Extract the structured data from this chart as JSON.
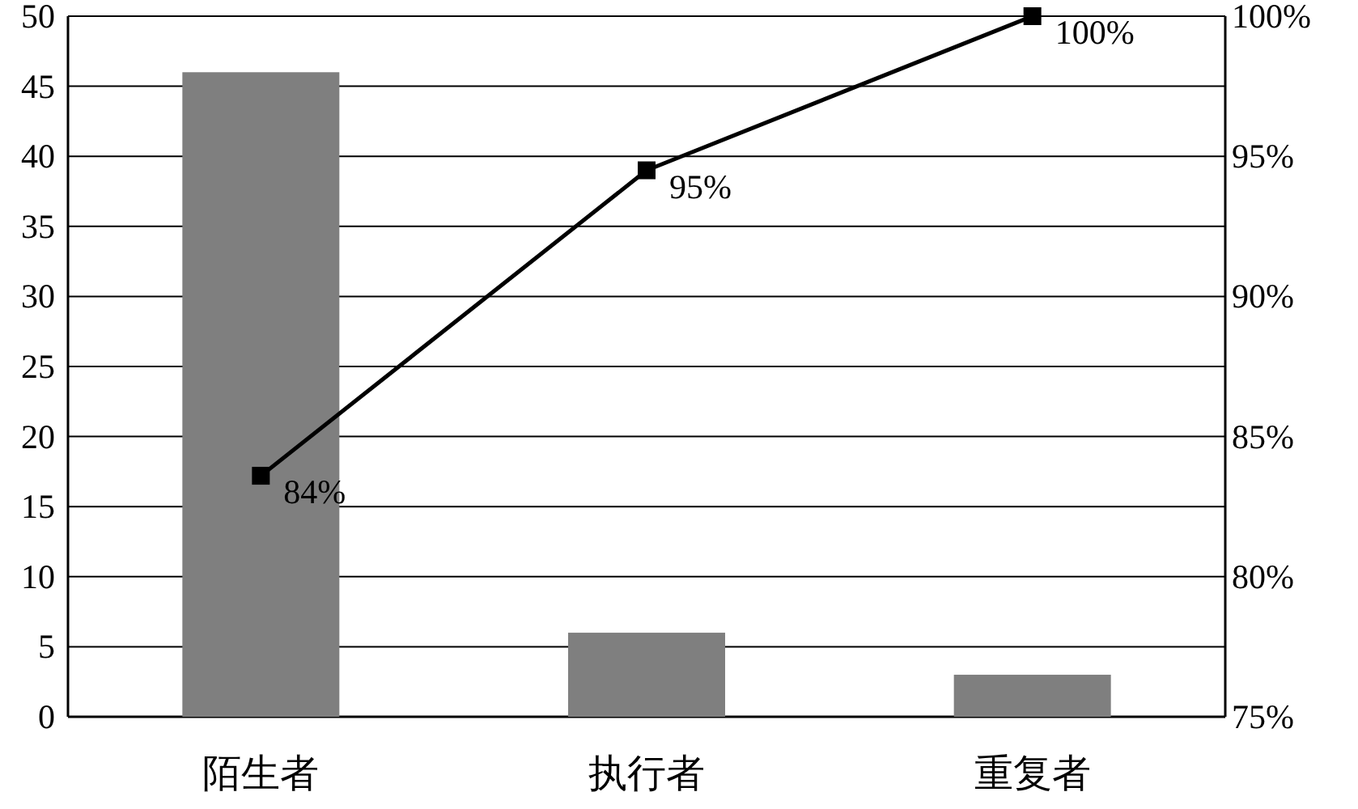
{
  "chart_data": {
    "type": "bar",
    "categories": [
      "陌生者",
      "执行者",
      "重复者"
    ],
    "series": [
      {
        "color": "#7f7f7f",
        "values": [
          46,
          6,
          3
        ]
      },
      {
        "type": "line",
        "axis": "y2",
        "color": "#000000",
        "values": [
          83.6,
          94.5,
          100
        ],
        "value_labels": [
          "84%",
          "95%",
          "100%"
        ]
      }
    ],
    "ylim": [
      0,
      50
    ],
    "yticks": [
      0,
      5,
      10,
      15,
      20,
      25,
      30,
      35,
      40,
      45,
      50
    ],
    "y2lim": [
      75,
      100
    ],
    "y2ticks": [
      {
        "value": 75,
        "label": "75%"
      },
      {
        "value": 80,
        "label": "80%"
      },
      {
        "value": 85,
        "label": "85%"
      },
      {
        "value": 90,
        "label": "90%"
      },
      {
        "value": 95,
        "label": "95%"
      },
      {
        "value": 100,
        "label": "100%"
      }
    ],
    "grid": "y",
    "marker": "square"
  }
}
